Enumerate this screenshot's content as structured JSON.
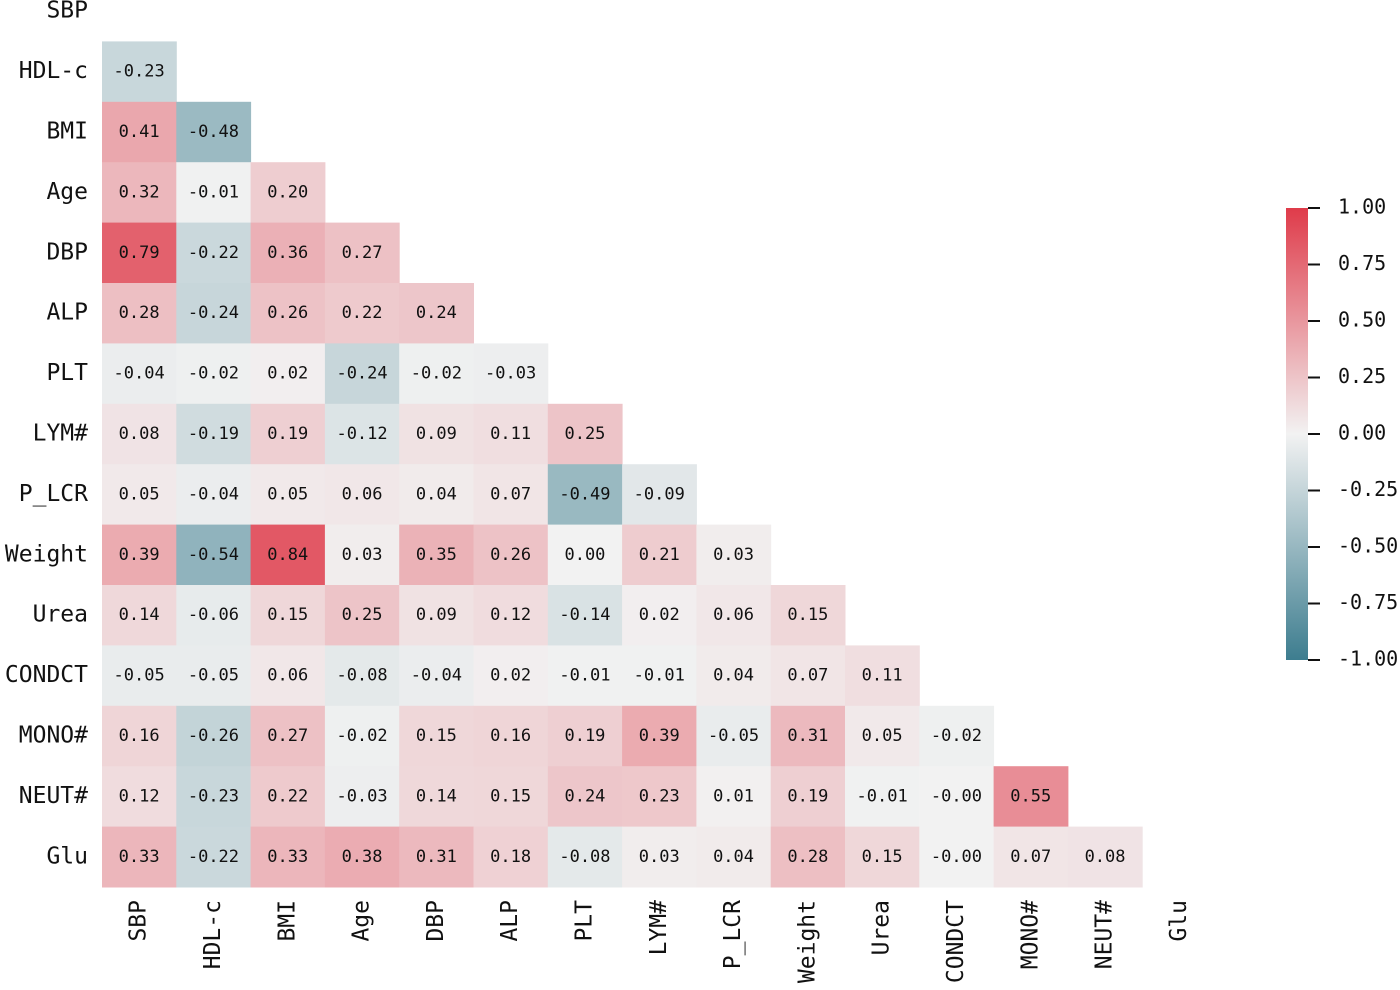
{
  "chart_data": {
    "type": "heatmap",
    "categories": [
      "SBP",
      "HDL-c",
      "BMI",
      "Age",
      "DBP",
      "ALP",
      "PLT",
      "LYM#",
      "P_LCR",
      "Weight",
      "Urea",
      "CONDCT",
      "MONO#",
      "NEUT#",
      "Glu"
    ],
    "values": [
      [],
      [
        -0.23
      ],
      [
        0.41,
        -0.48
      ],
      [
        0.32,
        -0.01,
        0.2
      ],
      [
        0.79,
        -0.22,
        0.36,
        0.27
      ],
      [
        0.28,
        -0.24,
        0.26,
        0.22,
        0.24
      ],
      [
        -0.04,
        -0.02,
        0.02,
        -0.24,
        -0.02,
        -0.03
      ],
      [
        0.08,
        -0.19,
        0.19,
        -0.12,
        0.09,
        0.11,
        0.25
      ],
      [
        0.05,
        -0.04,
        0.05,
        0.06,
        0.04,
        0.07,
        -0.49,
        -0.09
      ],
      [
        0.39,
        -0.54,
        0.84,
        0.03,
        0.35,
        0.26,
        0,
        0.21,
        0.03
      ],
      [
        0.14,
        -0.06,
        0.15,
        0.25,
        0.09,
        0.12,
        -0.14,
        0.02,
        0.06,
        0.15
      ],
      [
        -0.05,
        -0.05,
        0.06,
        -0.08,
        -0.04,
        0.02,
        -0.01,
        -0.01,
        0.04,
        0.07,
        0.11
      ],
      [
        0.16,
        -0.26,
        0.27,
        -0.02,
        0.15,
        0.16,
        0.19,
        0.39,
        -0.05,
        0.31,
        0.05,
        -0.02
      ],
      [
        0.12,
        -0.23,
        0.22,
        -0.03,
        0.14,
        0.15,
        0.24,
        0.23,
        0.01,
        0.19,
        -0.01,
        0,
        0.55
      ],
      [
        0.33,
        -0.22,
        0.33,
        0.38,
        0.31,
        0.18,
        -0.08,
        0.03,
        0.04,
        0.28,
        0.15,
        0,
        0.07,
        0.08
      ]
    ],
    "value_labels": [
      [],
      [
        "-0.23"
      ],
      [
        "0.41",
        "-0.48"
      ],
      [
        "0.32",
        "-0.01",
        "0.20"
      ],
      [
        "0.79",
        "-0.22",
        "0.36",
        "0.27"
      ],
      [
        "0.28",
        "-0.24",
        "0.26",
        "0.22",
        "0.24"
      ],
      [
        "-0.04",
        "-0.02",
        "0.02",
        "-0.24",
        "-0.02",
        "-0.03"
      ],
      [
        "0.08",
        "-0.19",
        "0.19",
        "-0.12",
        "0.09",
        "0.11",
        "0.25"
      ],
      [
        "0.05",
        "-0.04",
        "0.05",
        "0.06",
        "0.04",
        "0.07",
        "-0.49",
        "-0.09"
      ],
      [
        "0.39",
        "-0.54",
        "0.84",
        "0.03",
        "0.35",
        "0.26",
        "0.00",
        "0.21",
        "0.03"
      ],
      [
        "0.14",
        "-0.06",
        "0.15",
        "0.25",
        "0.09",
        "0.12",
        "-0.14",
        "0.02",
        "0.06",
        "0.15"
      ],
      [
        "-0.05",
        "-0.05",
        "0.06",
        "-0.08",
        "-0.04",
        "0.02",
        "-0.01",
        "-0.01",
        "0.04",
        "0.07",
        "0.11"
      ],
      [
        "0.16",
        "-0.26",
        "0.27",
        "-0.02",
        "0.15",
        "0.16",
        "0.19",
        "0.39",
        "-0.05",
        "0.31",
        "0.05",
        "-0.02"
      ],
      [
        "0.12",
        "-0.23",
        "0.22",
        "-0.03",
        "0.14",
        "0.15",
        "0.24",
        "0.23",
        "0.01",
        "0.19",
        "-0.01",
        "-0.00",
        "0.55"
      ],
      [
        "0.33",
        "-0.22",
        "0.33",
        "0.38",
        "0.31",
        "0.18",
        "-0.08",
        "0.03",
        "0.04",
        "0.28",
        "0.15",
        "-0.00",
        "0.07",
        "0.08"
      ]
    ],
    "colors": [
      "#3d7d8f",
      "#f2f2f2",
      "#df3b4a"
    ],
    "clim": [
      -1,
      1
    ],
    "cticks": [
      {
        "value": 1,
        "label": "1.00"
      },
      {
        "value": 0.75,
        "label": "0.75"
      },
      {
        "value": 0.5,
        "label": "0.50"
      },
      {
        "value": 0.25,
        "label": "0.25"
      },
      {
        "value": 0,
        "label": "0.00"
      },
      {
        "value": -0.25,
        "label": "-0.25"
      },
      {
        "value": -0.5,
        "label": "-0.50"
      },
      {
        "value": -0.75,
        "label": "-0.75"
      },
      {
        "value": -1,
        "label": "-1.00"
      }
    ]
  }
}
